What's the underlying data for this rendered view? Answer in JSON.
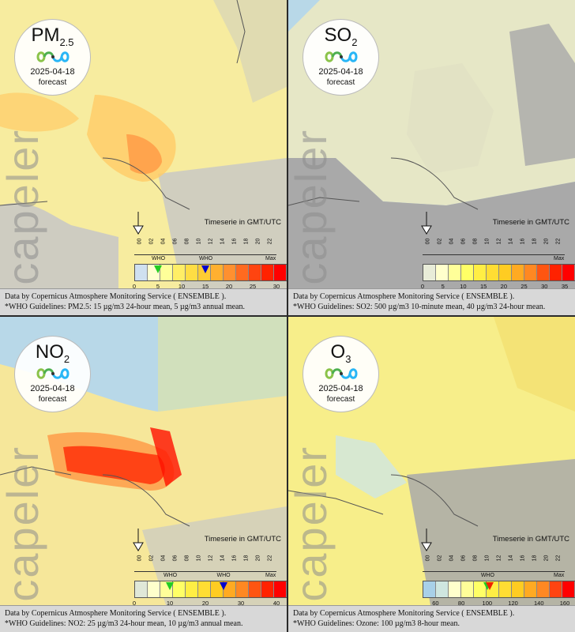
{
  "timeserie_label": "Timeserie in GMT/UTC",
  "watermark": "Scapeler",
  "date": "2025-04-18",
  "forecast_label": "forecast",
  "hours": [
    "00",
    "02",
    "04",
    "06",
    "08",
    "10",
    "12",
    "14",
    "16",
    "18",
    "20",
    "22"
  ],
  "panels": [
    {
      "pollutant": "PM",
      "sub": "2.5",
      "footer_line1": "Data by Copernicus Atmosphere Monitoring Service ( ENSEMBLE ).",
      "footer_line2": "*WHO Guidelines: PM2.5: 15 µg/m3 24-hour mean, 5 µg/m3 annual mean.",
      "who_labels": [
        "WHO",
        "WHO"
      ],
      "max_label": "Max",
      "ticks": [
        "0",
        "5",
        "10",
        "15",
        "20",
        "25",
        "30"
      ],
      "colors": [
        "#cfe0f0",
        "#ffffd0",
        "#ffff99",
        "#ffee66",
        "#ffdd44",
        "#ffcc33",
        "#ffb030",
        "#ff9030",
        "#ff6a20",
        "#ff4410",
        "#ff2200",
        "#ff0000"
      ],
      "who_markers": [
        {
          "value": 5,
          "color": "#22cc22"
        },
        {
          "value": 15,
          "color": "#0000cc"
        }
      ],
      "scale_max": 30
    },
    {
      "pollutant": "SO",
      "sub": "2",
      "footer_line1": "Data by Copernicus Atmosphere Monitoring Service ( ENSEMBLE ).",
      "footer_line2": "*WHO Guidelines: SO2: 500 µg/m3 10-minute mean, 40 µg/m3 24-hour mean.",
      "who_labels": [],
      "max_label": "Max",
      "ticks": [
        "0",
        "5",
        "10",
        "15",
        "20",
        "25",
        "30",
        "35"
      ],
      "colors": [
        "#e8ecd8",
        "#ffffcc",
        "#ffff99",
        "#ffff66",
        "#ffee44",
        "#ffdd33",
        "#ffcc22",
        "#ffaa22",
        "#ff8822",
        "#ff5511",
        "#ff2200",
        "#ff0000"
      ],
      "who_markers": [],
      "scale_max": 35
    },
    {
      "pollutant": "NO",
      "sub": "2",
      "footer_line1": "Data by Copernicus Atmosphere Monitoring Service ( ENSEMBLE ).",
      "footer_line2": "*WHO Guidelines: NO2: 25 µg/m3 24-hour mean, 10 µg/m3 annual mean.",
      "who_labels": [
        "WHO",
        "WHO"
      ],
      "max_label": "Max",
      "ticks": [
        "0",
        "10",
        "20",
        "30",
        "40"
      ],
      "colors": [
        "#e0e8d8",
        "#ffffcc",
        "#ffff99",
        "#ffff66",
        "#ffee44",
        "#ffdd33",
        "#ffcc22",
        "#ffaa22",
        "#ff8822",
        "#ff5511",
        "#ff2200",
        "#ff0000"
      ],
      "who_markers": [
        {
          "value": 10,
          "color": "#22cc22"
        },
        {
          "value": 25,
          "color": "#0000cc"
        }
      ],
      "scale_max": 40
    },
    {
      "pollutant": "O",
      "sub": "3",
      "footer_line1": "Data by Copernicus Atmosphere Monitoring Service ( ENSEMBLE ).",
      "footer_line2": "*WHO Guidelines: Ozone: 100 µg/m3 8-hour mean.",
      "who_labels": [
        "WHO"
      ],
      "max_label": "Max",
      "ticks": [
        "60",
        "80",
        "100",
        "120",
        "140",
        "160"
      ],
      "colors": [
        "#a8d0e8",
        "#cfe6e0",
        "#ffffcc",
        "#ffff99",
        "#ffff66",
        "#ffee44",
        "#ffdd33",
        "#ffcc22",
        "#ffaa22",
        "#ff8822",
        "#ff4411",
        "#ff0000"
      ],
      "who_markers": [
        {
          "value": 100,
          "color": "#22cc22"
        },
        {
          "value": 102,
          "color": "#ee2200"
        }
      ],
      "scale_min": 50,
      "scale_max": 160
    }
  ],
  "colors": {
    "sea": "#b8d8e8",
    "land": "#c8c8c2",
    "no_data": "#a9a9a9",
    "pm_bg": "#f7ec9f",
    "so2_bg": "#e6e7c6",
    "no2_bg": "#f6e79a",
    "o3_bg": "#f7ee8a"
  }
}
